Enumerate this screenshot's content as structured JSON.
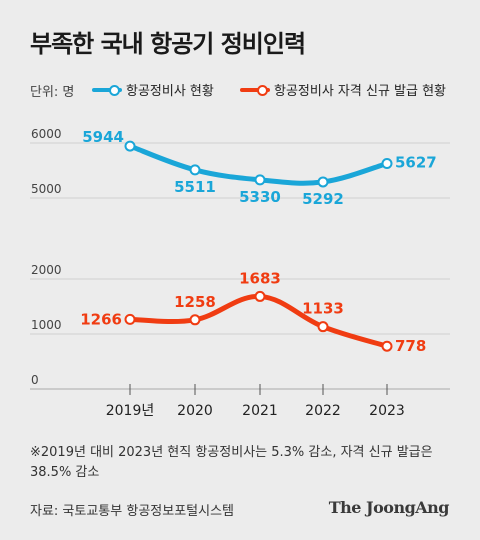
{
  "title": "부족한 국내 항공기 정비인력",
  "unit_label": "단위: 명",
  "note": "※2019년 대비 2023년 현직 항공정비사는 5.3% 감소, 자격 신규 발급은 38.5% 감소",
  "source": "자료: 국토교통부 항공정보포털시스템",
  "brand": "The JoongAng",
  "colors": {
    "series1": "#1aa6d8",
    "series2": "#f03c12",
    "background": "#ececec"
  },
  "chart_data": {
    "type": "line",
    "title": "부족한 국내 항공기 정비인력",
    "ylabel": "단위: 명",
    "axis_break": [
      2000,
      5000
    ],
    "y_ticks": [
      "0",
      "1000",
      "2000",
      "5000",
      "6000"
    ],
    "categories": [
      "2019년",
      "2020",
      "2021",
      "2022",
      "2023"
    ],
    "grid": "horizontal",
    "legend": "top",
    "series": [
      {
        "name": "항공정비사 현황",
        "values": [
          5944,
          5511,
          5330,
          5292,
          5627
        ]
      },
      {
        "name": "항공정비사 자격 신규 발급 현황",
        "values": [
          1266,
          1258,
          1683,
          1133,
          778
        ]
      }
    ]
  }
}
